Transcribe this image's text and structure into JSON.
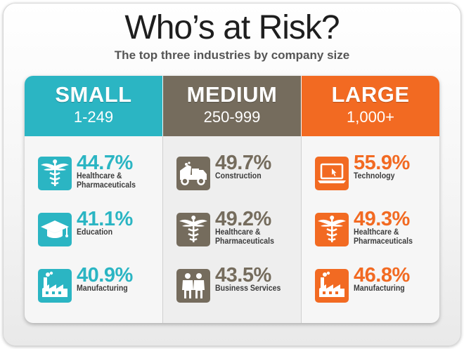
{
  "title": "Who’s at Risk?",
  "subtitle": "The top three industries by company size",
  "colors": {
    "small": "#2bb5c3",
    "medium": "#756c5d",
    "large": "#f26a22"
  },
  "chart_data": {
    "type": "table",
    "title": "Who’s at Risk?",
    "subtitle": "The top three industries by company size",
    "columns": [
      {
        "size": "SMALL",
        "range": "1-249",
        "color": "#2bb5c3",
        "items": [
          {
            "value": 44.7,
            "display": "44.7%",
            "label": "Healthcare &\nPharmaceuticals",
            "icon": "caduceus-icon"
          },
          {
            "value": 41.1,
            "display": "41.1%",
            "label": "Education",
            "icon": "graduation-cap-icon"
          },
          {
            "value": 40.9,
            "display": "40.9%",
            "label": "Manufacturing",
            "icon": "factory-icon"
          }
        ]
      },
      {
        "size": "MEDIUM",
        "range": "250-999",
        "color": "#756c5d",
        "items": [
          {
            "value": 49.7,
            "display": "49.7%",
            "label": "Construction",
            "icon": "dump-truck-icon"
          },
          {
            "value": 49.2,
            "display": "49.2%",
            "label": "Healthcare &\nPharmaceuticals",
            "icon": "caduceus-icon"
          },
          {
            "value": 43.5,
            "display": "43.5%",
            "label": "Business Services",
            "icon": "people-icon"
          }
        ]
      },
      {
        "size": "LARGE",
        "range": "1,000+",
        "color": "#f26a22",
        "items": [
          {
            "value": 55.9,
            "display": "55.9%",
            "label": "Technology",
            "icon": "laptop-icon"
          },
          {
            "value": 49.3,
            "display": "49.3%",
            "label": "Healthcare &\nPharmaceuticals",
            "icon": "caduceus-icon"
          },
          {
            "value": 46.8,
            "display": "46.8%",
            "label": "Manufacturing",
            "icon": "factory-icon"
          }
        ]
      }
    ]
  }
}
